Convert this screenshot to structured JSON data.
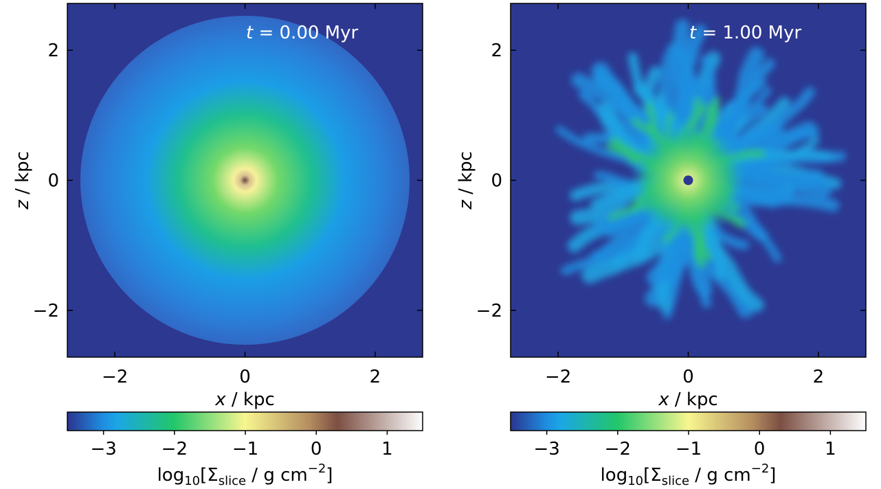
{
  "chart_data": [
    {
      "type": "image",
      "annotation": [
        "t",
        " = 0.00 Myr"
      ],
      "x_label": [
        "x",
        " / kpc"
      ],
      "y_label": [
        "z",
        " / kpc"
      ],
      "xlim": [
        -2.73,
        2.73
      ],
      "ylim": [
        -2.72,
        2.72
      ],
      "xticks": [
        {
          "value": -2,
          "label": "−2"
        },
        0,
        2
      ],
      "yticks": [
        {
          "value": -2,
          "label": "−2"
        },
        0,
        2
      ],
      "colorbar": {
        "lim": [
          -3.51,
          1.5
        ],
        "ticks": [
          {
            "value": -3,
            "label": "−3"
          },
          {
            "value": -2,
            "label": "−2"
          },
          {
            "value": -1,
            "label": "−1"
          },
          0,
          1
        ],
        "label": [
          "log",
          "10",
          "[Σ",
          "slice",
          " / g cm",
          "−2",
          "]"
        ]
      }
    },
    {
      "type": "image",
      "annotation": [
        "t",
        " = 1.00 Myr"
      ],
      "x_label": [
        "x",
        " / kpc"
      ],
      "y_label": [
        "z",
        " / kpc"
      ],
      "xlim": [
        -2.73,
        2.73
      ],
      "ylim": [
        -2.72,
        2.72
      ],
      "xticks": [
        {
          "value": -2,
          "label": "−2"
        },
        0,
        2
      ],
      "yticks": [
        {
          "value": -2,
          "label": "−2"
        },
        0,
        2
      ],
      "colorbar": {
        "lim": [
          -3.51,
          1.5
        ],
        "ticks": [
          {
            "value": -3,
            "label": "−3"
          },
          {
            "value": -2,
            "label": "−2"
          },
          {
            "value": -1,
            "label": "−1"
          },
          0,
          1
        ],
        "label": [
          "log",
          "10",
          "[Σ",
          "slice",
          " / g cm",
          "−2",
          "]"
        ]
      }
    }
  ]
}
